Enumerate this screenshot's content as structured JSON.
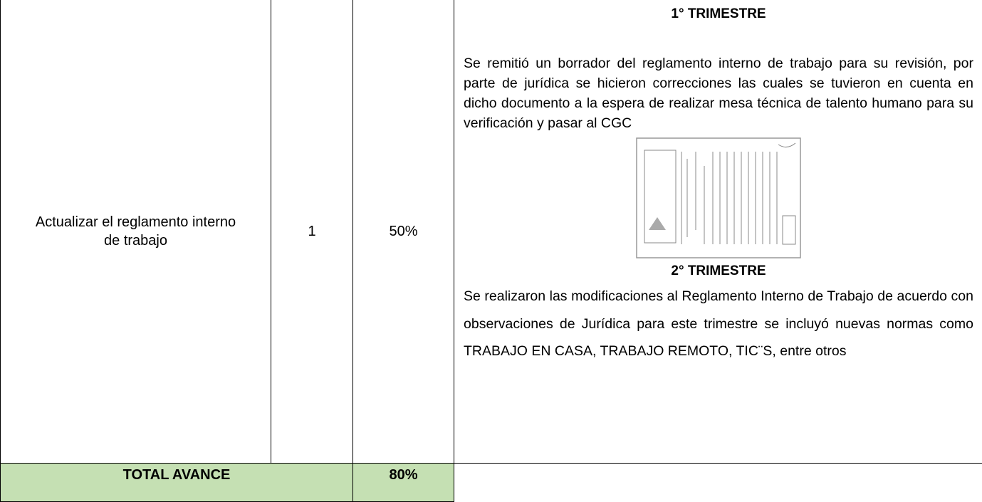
{
  "table": {
    "rows": [
      [
        "Actualizar el reglamento interno de trabajo",
        "1",
        "50%"
      ]
    ],
    "detail": [
      {
        "heading": "1° TRIMESTRE",
        "text": "Se remitió un borrador del reglamento interno de trabajo para su revisión, por parte de jurídica se hicieron correcciones las cuales se tuvieron en cuenta en dicho documento a la espera de realizar mesa técnica de talento humano para su verificación y pasar al CGC"
      },
      {
        "heading": "2° TRIMESTRE",
        "text": "Se realizaron las modificaciones al Reglamento Interno de Trabajo de acuerdo con observaciones de Jurídica para este trimestre se incluyó nuevas normas como TRABAJO EN CASA, TRABAJO REMOTO, TIC¨S, entre otros"
      }
    ],
    "total": {
      "label": "TOTAL AVANCE",
      "value": "80%"
    }
  }
}
